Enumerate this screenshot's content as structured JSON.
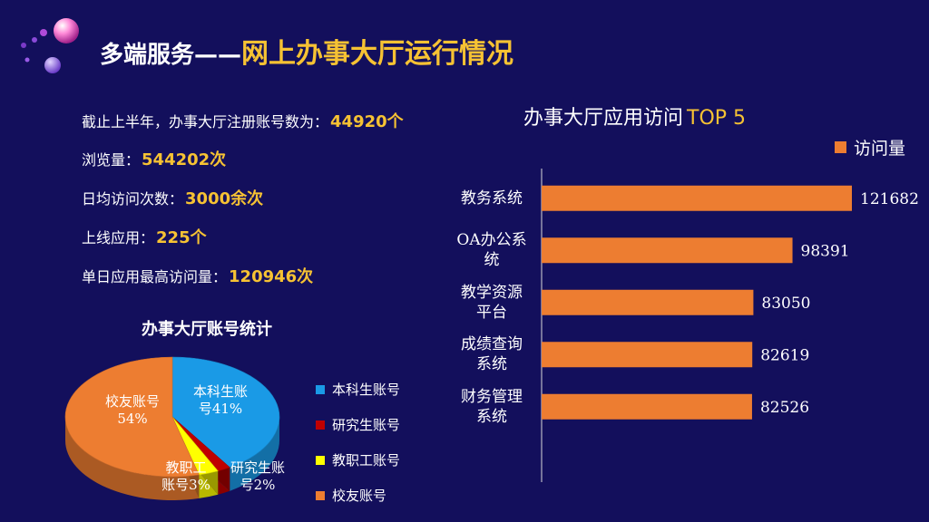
{
  "header": {
    "title_prefix": "多端服务——",
    "title_main": "网上办事大厅运行情况"
  },
  "stats": [
    {
      "label": "截止上半年，办事大厅注册账号数为：",
      "value": "44920个"
    },
    {
      "label": "浏览量：",
      "value": "544202次"
    },
    {
      "label": "日均访问次数：",
      "value": "3000余次"
    },
    {
      "label": "上线应用：",
      "value": "225个"
    },
    {
      "label": "单日应用最高访问量：",
      "value": "120946次"
    }
  ],
  "chart_data": [
    {
      "type": "pie",
      "title": "办事大厅账号统计",
      "categories": [
        "本科生账号",
        "研究生账号",
        "教职工账号",
        "校友账号"
      ],
      "values": [
        41,
        2,
        3,
        54
      ],
      "slice_labels": [
        "本科生账\n号41%",
        "研究生账\n号2%",
        "教职工\n账号3%",
        "校友账号\n54%"
      ],
      "colors": [
        "#1a9ae6",
        "#c00000",
        "#ffff00",
        "#ed7d31"
      ],
      "legend": "right"
    },
    {
      "type": "bar",
      "orientation": "horizontal",
      "title_cn": "办事大厅应用访问",
      "title_en": "TOP 5",
      "categories": [
        "教务系统",
        "OA办公系统",
        "教学资源平台",
        "成绩查询系统",
        "财务管理系统"
      ],
      "category_labels": [
        [
          "教务系统"
        ],
        [
          "OA办公系",
          "统"
        ],
        [
          "教学资源",
          "平台"
        ],
        [
          "成绩查询",
          "系统"
        ],
        [
          "财务管理",
          "系统"
        ]
      ],
      "series": [
        {
          "name": "访问量",
          "values": [
            121682,
            98391,
            83050,
            82619,
            82526
          ],
          "color": "#ed7d31"
        }
      ],
      "xlim": [
        0,
        130000
      ],
      "legend": "top-right",
      "grid": false
    }
  ]
}
